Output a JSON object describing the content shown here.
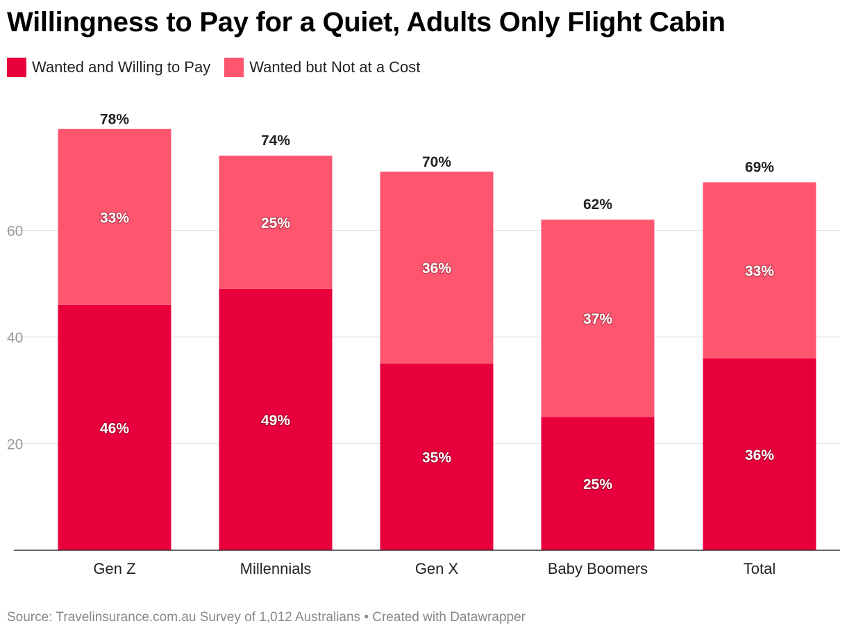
{
  "chart_data": {
    "type": "bar",
    "stacked": true,
    "title": "Willingness to Pay for a Quiet, Adults Only Flight Cabin",
    "categories": [
      "Gen Z",
      "Millennials",
      "Gen X",
      "Baby Boomers",
      "Total"
    ],
    "series": [
      {
        "name": "Wanted and Willing to Pay",
        "color": "#e8003d",
        "values": [
          46,
          49,
          35,
          25,
          36
        ],
        "labels": [
          "46%",
          "49%",
          "35%",
          "25%",
          "36%"
        ]
      },
      {
        "name": "Wanted but Not at a Cost",
        "color": "#fe566f",
        "values": [
          33,
          25,
          36,
          37,
          33
        ],
        "labels": [
          "33%",
          "25%",
          "36%",
          "37%",
          "33%"
        ]
      }
    ],
    "totals": [
      78,
      74,
      70,
      62,
      69
    ],
    "total_labels": [
      "78%",
      "74%",
      "70%",
      "62%",
      "69%"
    ],
    "y_ticks": [
      20,
      40,
      60
    ],
    "ylim": [
      0,
      80
    ],
    "xlabel": "",
    "ylabel": "",
    "grid": true,
    "legend_position": "top-left"
  },
  "source": "Source: Travelinsurance.com.au Survey of 1,012 Australians • Created with Datawrapper"
}
